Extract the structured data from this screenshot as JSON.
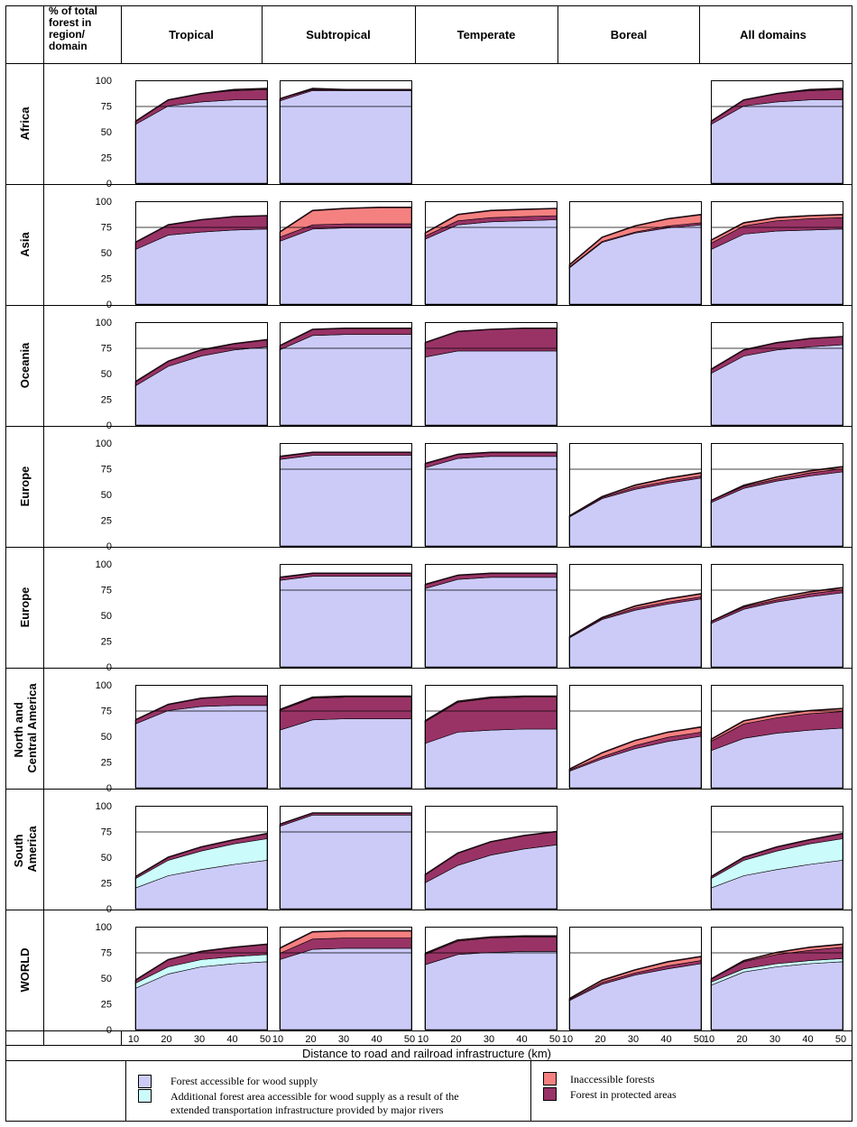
{
  "corner_header": "% of total forest in region/ domain",
  "columns": [
    "Tropical",
    "Subtropical",
    "Temperate",
    "Boreal",
    "All domains"
  ],
  "rows": [
    "Africa",
    "Asia",
    "Oceania",
    "Europe",
    "Europe",
    "North and Central America",
    "South America",
    "WORLD"
  ],
  "y_ticks": [
    "100",
    "75",
    "50",
    "25",
    "0"
  ],
  "x_ticks": [
    "10",
    "20",
    "30",
    "40",
    "50"
  ],
  "x_axis_label": "Distance to road and railroad infrastructure (km)",
  "legend": {
    "accessible": "Forest accessible for wood supply",
    "rivers": "Additional forest area accessible for wood supply as a result of the extended transportation infrastructure provided by major rivers",
    "inaccessible": "Inaccessible forests",
    "protected": "Forest in protected areas"
  },
  "colors": {
    "accessible": "#cccbf8",
    "rivers": "#ccfbfb",
    "inaccessible": "#f58080",
    "protected": "#993366",
    "black_band": "#1a0a12",
    "grid": "#000000"
  },
  "chart_data": {
    "type": "area",
    "stacked": true,
    "x": [
      10,
      20,
      30,
      40,
      50
    ],
    "ylim": [
      0,
      100
    ],
    "xlabel": "Distance to road and railroad infrastructure (km)",
    "ylabel": "% of total forest in region/ domain",
    "legend_position": "bottom",
    "layer_order": [
      "accessible",
      "rivers",
      "protected",
      "inaccessible"
    ],
    "panels": [
      {
        "row": 0,
        "col": 0,
        "accessible": [
          57,
          75,
          79,
          81,
          81
        ],
        "rivers": [
          0,
          0,
          0,
          0,
          0
        ],
        "protected": [
          3,
          6,
          8,
          9,
          10
        ],
        "inaccessible": [
          0,
          0,
          0,
          1,
          1
        ]
      },
      {
        "row": 0,
        "col": 1,
        "accessible": [
          80,
          90,
          90,
          90,
          90
        ],
        "rivers": [
          0,
          0,
          0,
          0,
          0
        ],
        "protected": [
          2,
          1,
          1,
          1,
          1
        ],
        "inaccessible": [
          0,
          1,
          0,
          0,
          0
        ]
      },
      null,
      null,
      {
        "row": 0,
        "col": 4,
        "accessible": [
          57,
          75,
          79,
          81,
          81
        ],
        "rivers": [
          0,
          0,
          0,
          0,
          0
        ],
        "protected": [
          3,
          6,
          8,
          9,
          10
        ],
        "inaccessible": [
          0,
          0,
          0,
          1,
          1
        ]
      },
      {
        "row": 1,
        "col": 0,
        "accessible": [
          53,
          67,
          70,
          72,
          73
        ],
        "rivers": [
          0,
          0,
          0,
          0,
          0
        ],
        "protected": [
          7,
          10,
          12,
          13,
          13
        ],
        "inaccessible": [
          0,
          0,
          0,
          0,
          0
        ]
      },
      {
        "row": 1,
        "col": 1,
        "accessible": [
          61,
          73,
          74,
          74,
          74
        ],
        "rivers": [
          0,
          0,
          0,
          0,
          0
        ],
        "protected": [
          4,
          4,
          4,
          4,
          4
        ],
        "inaccessible": [
          5,
          14,
          15,
          16,
          16
        ]
      },
      {
        "row": 1,
        "col": 2,
        "accessible": [
          63,
          77,
          80,
          81,
          82
        ],
        "rivers": [
          0,
          0,
          0,
          0,
          0
        ],
        "protected": [
          3,
          4,
          4,
          4,
          4
        ],
        "inaccessible": [
          3,
          6,
          7,
          7,
          7
        ]
      },
      {
        "row": 1,
        "col": 3,
        "accessible": [
          35,
          60,
          69,
          74,
          77
        ],
        "rivers": [
          0,
          0,
          0,
          0,
          0
        ],
        "protected": [
          1,
          1,
          1,
          2,
          2
        ],
        "inaccessible": [
          2,
          4,
          6,
          7,
          8
        ]
      },
      {
        "row": 1,
        "col": 4,
        "accessible": [
          53,
          68,
          71,
          72,
          73
        ],
        "rivers": [
          0,
          0,
          0,
          0,
          0
        ],
        "protected": [
          6,
          8,
          10,
          11,
          11
        ],
        "inaccessible": [
          3,
          3,
          3,
          3,
          3
        ]
      },
      {
        "row": 2,
        "col": 0,
        "accessible": [
          38,
          57,
          67,
          73,
          76
        ],
        "rivers": [
          0,
          0,
          0,
          0,
          0
        ],
        "protected": [
          4,
          5,
          6,
          6,
          7
        ],
        "inaccessible": [
          0,
          0,
          0,
          0,
          0
        ]
      },
      {
        "row": 2,
        "col": 1,
        "accessible": [
          73,
          87,
          88,
          88,
          88
        ],
        "rivers": [
          0,
          0,
          0,
          0,
          0
        ],
        "protected": [
          4,
          6,
          6,
          6,
          6
        ],
        "inaccessible": [
          0,
          0,
          0,
          0,
          0
        ]
      },
      {
        "row": 2,
        "col": 2,
        "accessible": [
          66,
          72,
          72,
          72,
          72
        ],
        "rivers": [
          0,
          0,
          0,
          0,
          0
        ],
        "protected": [
          14,
          19,
          21,
          22,
          22
        ],
        "inaccessible": [
          0,
          0,
          0,
          0,
          0
        ]
      },
      null,
      {
        "row": 2,
        "col": 4,
        "accessible": [
          50,
          67,
          73,
          76,
          78
        ],
        "rivers": [
          0,
          0,
          0,
          0,
          0
        ],
        "protected": [
          4,
          6,
          7,
          8,
          8
        ],
        "inaccessible": [
          0,
          0,
          0,
          0,
          0
        ]
      },
      null,
      {
        "row": 3,
        "col": 1,
        "accessible": [
          84,
          88,
          88,
          88,
          88
        ],
        "rivers": [
          0,
          0,
          0,
          0,
          0
        ],
        "protected": [
          3,
          3,
          3,
          3,
          3
        ],
        "inaccessible": [
          0,
          0,
          0,
          0,
          0
        ]
      },
      {
        "row": 3,
        "col": 2,
        "accessible": [
          76,
          85,
          87,
          87,
          87
        ],
        "rivers": [
          0,
          0,
          0,
          0,
          0
        ],
        "protected": [
          4,
          4,
          4,
          4,
          4
        ],
        "inaccessible": [
          0,
          0,
          0,
          0,
          0
        ]
      },
      {
        "row": 3,
        "col": 3,
        "accessible": [
          28,
          46,
          55,
          61,
          66
        ],
        "rivers": [
          0,
          0,
          0,
          0,
          0
        ],
        "protected": [
          1,
          1,
          2,
          2,
          2
        ],
        "inaccessible": [
          0,
          1,
          2,
          3,
          3
        ]
      },
      {
        "row": 3,
        "col": 4,
        "accessible": [
          42,
          56,
          63,
          68,
          72
        ],
        "rivers": [
          0,
          0,
          0,
          0,
          0
        ],
        "protected": [
          2,
          2,
          2,
          3,
          3
        ],
        "inaccessible": [
          0,
          1,
          2,
          2,
          2
        ]
      },
      null,
      {
        "row": 4,
        "col": 1,
        "accessible": [
          84,
          88,
          88,
          88,
          88
        ],
        "rivers": [
          0,
          0,
          0,
          0,
          0
        ],
        "protected": [
          3,
          3,
          3,
          3,
          3
        ],
        "inaccessible": [
          0,
          0,
          0,
          0,
          0
        ]
      },
      {
        "row": 4,
        "col": 2,
        "accessible": [
          76,
          85,
          87,
          87,
          87
        ],
        "rivers": [
          0,
          0,
          0,
          0,
          0
        ],
        "protected": [
          4,
          4,
          4,
          4,
          4
        ],
        "inaccessible": [
          0,
          0,
          0,
          0,
          0
        ]
      },
      {
        "row": 4,
        "col": 3,
        "accessible": [
          28,
          46,
          55,
          61,
          66
        ],
        "rivers": [
          0,
          0,
          0,
          0,
          0
        ],
        "protected": [
          1,
          1,
          2,
          2,
          2
        ],
        "inaccessible": [
          0,
          1,
          2,
          3,
          3
        ]
      },
      {
        "row": 4,
        "col": 4,
        "accessible": [
          42,
          56,
          63,
          68,
          72
        ],
        "rivers": [
          0,
          0,
          0,
          0,
          0
        ],
        "protected": [
          2,
          2,
          2,
          3,
          3
        ],
        "inaccessible": [
          0,
          1,
          2,
          2,
          2
        ]
      },
      {
        "row": 5,
        "col": 0,
        "accessible": [
          62,
          75,
          79,
          80,
          80
        ],
        "rivers": [
          0,
          0,
          0,
          0,
          0
        ],
        "protected": [
          4,
          6,
          8,
          9,
          9
        ],
        "inaccessible": [
          0,
          0,
          0,
          0,
          0
        ]
      },
      {
        "row": 5,
        "col": 1,
        "accessible": [
          56,
          66,
          67,
          67,
          67
        ],
        "rivers": [
          0,
          0,
          0,
          0,
          0
        ],
        "protected": [
          19,
          21,
          21,
          21,
          21
        ],
        "inaccessible": [
          1,
          1,
          1,
          1,
          1
        ]
      },
      {
        "row": 5,
        "col": 2,
        "accessible": [
          43,
          54,
          56,
          57,
          57
        ],
        "rivers": [
          0,
          0,
          0,
          0,
          0
        ],
        "protected": [
          21,
          29,
          31,
          31,
          31
        ],
        "inaccessible": [
          1,
          1,
          1,
          1,
          1
        ]
      },
      {
        "row": 5,
        "col": 3,
        "accessible": [
          16,
          28,
          38,
          45,
          50
        ],
        "rivers": [
          0,
          0,
          0,
          0,
          0
        ],
        "protected": [
          1,
          2,
          3,
          4,
          4
        ],
        "inaccessible": [
          1,
          4,
          5,
          5,
          5
        ]
      },
      {
        "row": 5,
        "col": 4,
        "accessible": [
          36,
          48,
          53,
          56,
          58
        ],
        "rivers": [
          0,
          0,
          0,
          0,
          0
        ],
        "protected": [
          9,
          14,
          15,
          16,
          16
        ],
        "inaccessible": [
          2,
          3,
          3,
          3,
          3
        ]
      },
      {
        "row": 6,
        "col": 0,
        "accessible": [
          20,
          32,
          38,
          43,
          47
        ],
        "rivers": [
          9,
          15,
          18,
          20,
          21
        ],
        "protected": [
          2,
          3,
          4,
          4,
          5
        ],
        "inaccessible": [
          0,
          0,
          0,
          0,
          0
        ]
      },
      {
        "row": 6,
        "col": 1,
        "accessible": [
          80,
          91,
          91,
          91,
          91
        ],
        "rivers": [
          0,
          0,
          0,
          0,
          0
        ],
        "protected": [
          2,
          2,
          2,
          2,
          2
        ],
        "inaccessible": [
          0,
          0,
          0,
          0,
          0
        ]
      },
      {
        "row": 6,
        "col": 2,
        "accessible": [
          25,
          42,
          52,
          58,
          62
        ],
        "rivers": [
          0,
          0,
          0,
          0,
          0
        ],
        "protected": [
          8,
          12,
          13,
          13,
          13
        ],
        "inaccessible": [
          0,
          0,
          0,
          0,
          0
        ]
      },
      null,
      {
        "row": 6,
        "col": 4,
        "accessible": [
          20,
          32,
          38,
          43,
          47
        ],
        "rivers": [
          9,
          15,
          18,
          20,
          21
        ],
        "protected": [
          2,
          3,
          4,
          4,
          5
        ],
        "inaccessible": [
          0,
          0,
          0,
          0,
          0
        ]
      },
      {
        "row": 7,
        "col": 0,
        "accessible": [
          40,
          54,
          61,
          64,
          66
        ],
        "rivers": [
          5,
          7,
          7,
          7,
          7
        ],
        "protected": [
          3,
          7,
          8,
          9,
          10
        ],
        "inaccessible": [
          0,
          0,
          0,
          0,
          0
        ]
      },
      {
        "row": 7,
        "col": 1,
        "accessible": [
          68,
          78,
          79,
          79,
          79
        ],
        "rivers": [
          0,
          0,
          0,
          0,
          0
        ],
        "protected": [
          6,
          10,
          10,
          10,
          10
        ],
        "inaccessible": [
          5,
          7,
          7,
          7,
          7
        ]
      },
      {
        "row": 7,
        "col": 2,
        "accessible": [
          63,
          73,
          75,
          76,
          76
        ],
        "rivers": [
          0,
          0,
          0,
          0,
          0
        ],
        "protected": [
          10,
          13,
          14,
          14,
          14
        ],
        "inaccessible": [
          1,
          1,
          1,
          1,
          1
        ]
      },
      {
        "row": 7,
        "col": 3,
        "accessible": [
          28,
          44,
          53,
          59,
          64
        ],
        "rivers": [
          0,
          0,
          0,
          0,
          0
        ],
        "protected": [
          1,
          2,
          2,
          3,
          3
        ],
        "inaccessible": [
          1,
          2,
          3,
          4,
          4
        ]
      },
      {
        "row": 7,
        "col": 4,
        "accessible": [
          43,
          56,
          61,
          64,
          66
        ],
        "rivers": [
          3,
          3,
          3,
          3,
          3
        ],
        "protected": [
          3,
          7,
          9,
          10,
          11
        ],
        "inaccessible": [
          0,
          1,
          2,
          3,
          3
        ]
      }
    ]
  }
}
